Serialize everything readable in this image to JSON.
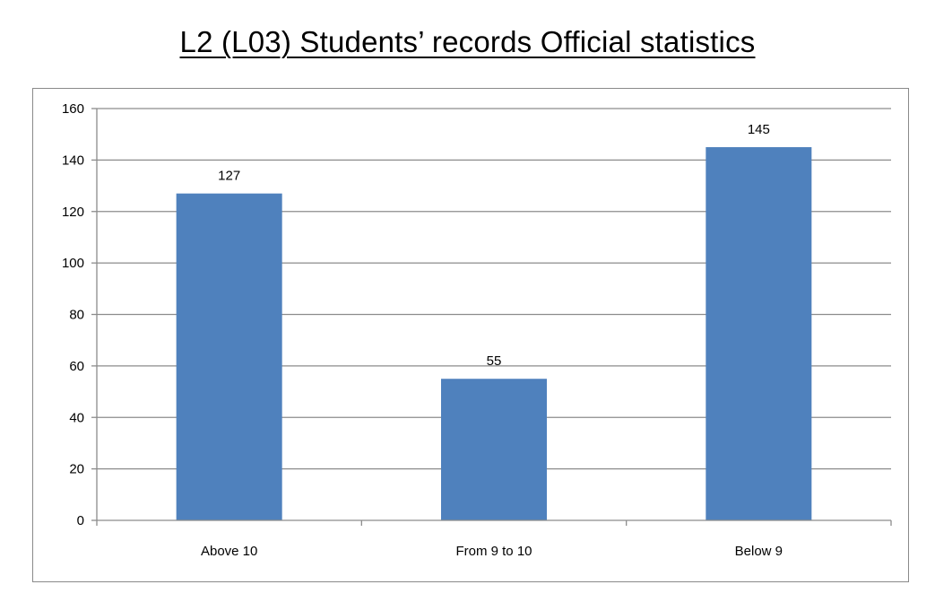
{
  "chart_data": {
    "type": "bar",
    "title": "L2 (L03) Students’ records Official statistics",
    "categories": [
      "Above 10",
      "From 9 to 10",
      "Below 9"
    ],
    "values": [
      127,
      55,
      145
    ],
    "ylim": [
      0,
      160
    ],
    "yticks": [
      0,
      20,
      40,
      60,
      80,
      100,
      120,
      140,
      160
    ],
    "grid": true,
    "legend": "none",
    "bar_color": "#4F81BD",
    "grid_color": "#8C8C8C"
  }
}
